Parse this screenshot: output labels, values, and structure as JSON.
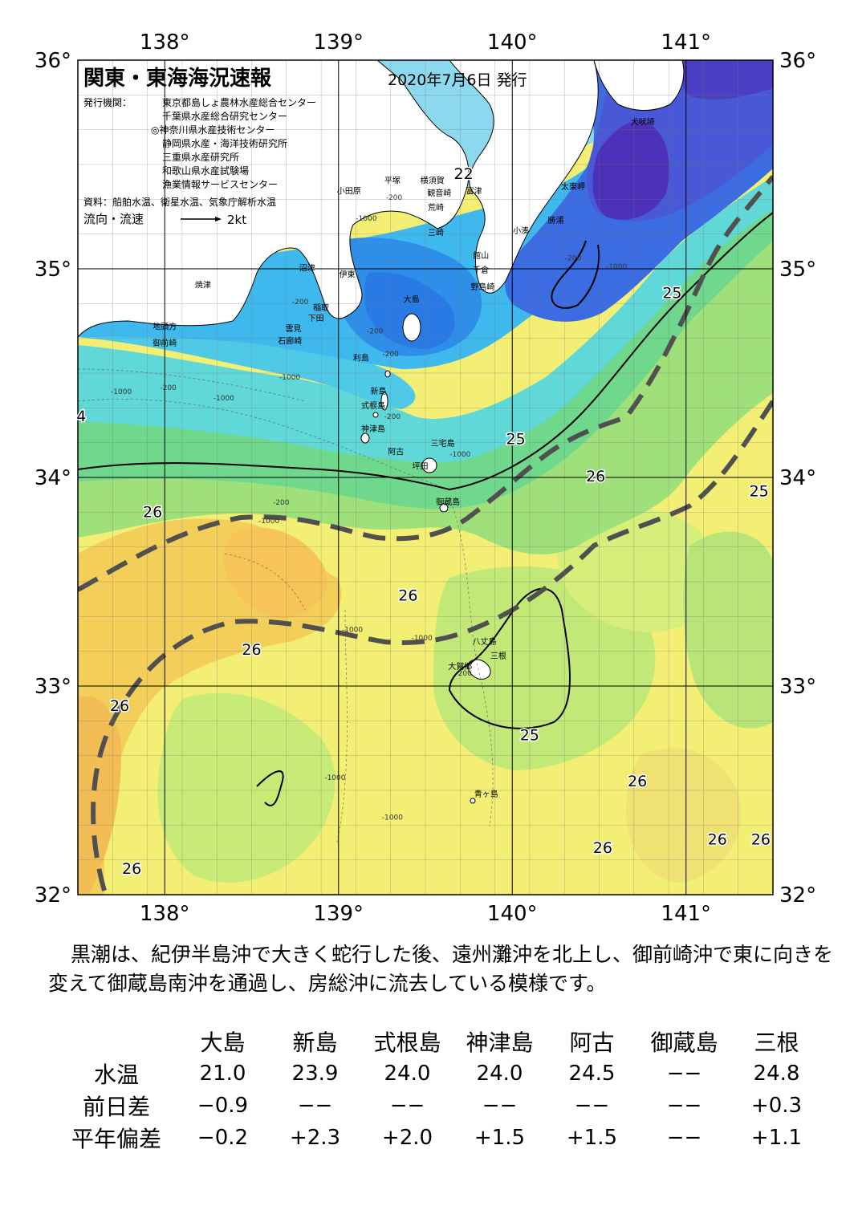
{
  "title": "関東・東海海況速報",
  "issue_date": "2020年7月6日 発行",
  "issuer_label": "発行機関：",
  "issuers": [
    "東京都島しょ農林水産総合センター",
    "千葉県水産総合研究センター",
    "◎神奈川県水産技術センター",
    "静岡県水産・海洋技術研究所",
    "三重県水産研究所",
    "和歌山県水産試験場",
    "漁業情報サービスセンター"
  ],
  "sources": "資料：船舶水温、衛星水温、気象庁解析水温",
  "flow_legend": {
    "label": "流向・流速",
    "value": "2kt"
  },
  "colors": {
    "land": "#ffffff",
    "kuroshio_axis": "#505050",
    "isotherm": "#000000"
  },
  "axes": {
    "lon_ticks": [
      "138°",
      "139°",
      "140°",
      "141°"
    ],
    "lat_ticks": [
      "36°",
      "35°",
      "34°",
      "33°",
      "32°"
    ],
    "lon_range": [
      137.5,
      141.5
    ],
    "lat_range": [
      32,
      36
    ]
  },
  "place_names": [
    {
      "name": "犬吠埼",
      "lon": 140.75,
      "lat": 35.69
    },
    {
      "name": "太東岬",
      "lon": 140.35,
      "lat": 35.38
    },
    {
      "name": "勝浦",
      "lon": 140.25,
      "lat": 35.22
    },
    {
      "name": "小湊",
      "lon": 140.05,
      "lat": 35.17
    },
    {
      "name": "富津",
      "lon": 139.78,
      "lat": 35.36
    },
    {
      "name": "横須賀",
      "lon": 139.54,
      "lat": 35.41
    },
    {
      "name": "観音崎",
      "lon": 139.58,
      "lat": 35.35
    },
    {
      "name": "平塚",
      "lon": 139.31,
      "lat": 35.41
    },
    {
      "name": "小田原",
      "lon": 139.06,
      "lat": 35.36
    },
    {
      "name": "荒崎",
      "lon": 139.56,
      "lat": 35.28
    },
    {
      "name": "三崎",
      "lon": 139.56,
      "lat": 35.16
    },
    {
      "name": "館山",
      "lon": 139.82,
      "lat": 35.05
    },
    {
      "name": "千倉",
      "lon": 139.82,
      "lat": 34.98
    },
    {
      "name": "野島崎",
      "lon": 139.83,
      "lat": 34.9
    },
    {
      "name": "沼津",
      "lon": 138.82,
      "lat": 34.99
    },
    {
      "name": "伊東",
      "lon": 139.05,
      "lat": 34.96
    },
    {
      "name": "焼津",
      "lon": 138.22,
      "lat": 34.91
    },
    {
      "name": "稲取",
      "lon": 138.9,
      "lat": 34.8
    },
    {
      "name": "下田",
      "lon": 138.87,
      "lat": 34.75
    },
    {
      "name": "雲見",
      "lon": 138.74,
      "lat": 34.7
    },
    {
      "name": "石廊崎",
      "lon": 138.72,
      "lat": 34.64
    },
    {
      "name": "地頭方",
      "lon": 138.0,
      "lat": 34.71
    },
    {
      "name": "御前崎",
      "lon": 138.0,
      "lat": 34.63
    },
    {
      "name": "大島",
      "lon": 139.42,
      "lat": 34.84
    },
    {
      "name": "利島",
      "lon": 139.13,
      "lat": 34.56
    },
    {
      "name": "新島",
      "lon": 139.23,
      "lat": 34.4
    },
    {
      "name": "式根島",
      "lon": 139.2,
      "lat": 34.33
    },
    {
      "name": "神津島",
      "lon": 139.2,
      "lat": 34.22
    },
    {
      "name": "三宅島",
      "lon": 139.6,
      "lat": 34.15
    },
    {
      "name": "阿古",
      "lon": 139.33,
      "lat": 34.11
    },
    {
      "name": "坪田",
      "lon": 139.47,
      "lat": 34.04
    },
    {
      "name": "御蔵島",
      "lon": 139.63,
      "lat": 33.87
    },
    {
      "name": "八丈島",
      "lon": 139.84,
      "lat": 33.2
    },
    {
      "name": "三根",
      "lon": 139.92,
      "lat": 33.13
    },
    {
      "name": "大賀郷",
      "lon": 139.7,
      "lat": 33.08
    },
    {
      "name": "青ヶ島",
      "lon": 139.85,
      "lat": 32.47
    }
  ],
  "isotherm_labels": [
    {
      "text": "22",
      "lon": 139.72,
      "lat": 35.43
    },
    {
      "text": "25",
      "lon": 140.92,
      "lat": 34.86
    },
    {
      "text": "25",
      "lon": 140.02,
      "lat": 34.16
    },
    {
      "text": "26",
      "lon": 140.48,
      "lat": 33.98
    },
    {
      "text": "25",
      "lon": 141.42,
      "lat": 33.91
    },
    {
      "text": "26",
      "lon": 137.93,
      "lat": 33.81
    },
    {
      "text": "26",
      "lon": 139.4,
      "lat": 33.41
    },
    {
      "text": "26",
      "lon": 138.5,
      "lat": 33.15
    },
    {
      "text": "26",
      "lon": 137.74,
      "lat": 32.88
    },
    {
      "text": "25",
      "lon": 140.1,
      "lat": 32.74
    },
    {
      "text": "26",
      "lon": 140.72,
      "lat": 32.52
    },
    {
      "text": "26",
      "lon": 140.52,
      "lat": 32.2
    },
    {
      "text": "26",
      "lon": 141.18,
      "lat": 32.24
    },
    {
      "text": "26",
      "lon": 141.43,
      "lat": 32.24
    },
    {
      "text": "26",
      "lon": 137.81,
      "lat": 32.1
    },
    {
      "text": "4",
      "lon": 137.52,
      "lat": 34.27
    }
  ],
  "depth_labels": [
    {
      "text": "-200",
      "lon": 139.32,
      "lat": 35.33
    },
    {
      "text": "-1000",
      "lon": 139.16,
      "lat": 35.23
    },
    {
      "text": "-200",
      "lon": 140.35,
      "lat": 35.04
    },
    {
      "text": "-1000",
      "lon": 140.6,
      "lat": 35.0
    },
    {
      "text": "-200",
      "lon": 138.78,
      "lat": 34.83
    },
    {
      "text": "-200",
      "lon": 139.21,
      "lat": 34.69
    },
    {
      "text": "-200",
      "lon": 139.3,
      "lat": 34.58
    },
    {
      "text": "-1000",
      "lon": 138.72,
      "lat": 34.47
    },
    {
      "text": "-1000",
      "lon": 137.75,
      "lat": 34.4
    },
    {
      "text": "-200",
      "lon": 138.02,
      "lat": 34.42
    },
    {
      "text": "-1000",
      "lon": 138.34,
      "lat": 34.37
    },
    {
      "text": "-200",
      "lon": 139.31,
      "lat": 34.28
    },
    {
      "text": "-1000",
      "lon": 139.7,
      "lat": 34.1
    },
    {
      "text": "-200",
      "lon": 138.67,
      "lat": 33.87
    },
    {
      "text": "-1000",
      "lon": 138.6,
      "lat": 33.78
    },
    {
      "text": "-1000",
      "lon": 139.08,
      "lat": 33.26
    },
    {
      "text": "-1000",
      "lon": 139.48,
      "lat": 33.22
    },
    {
      "text": "-200",
      "lon": 139.72,
      "lat": 33.05
    },
    {
      "text": "-1000",
      "lon": 138.98,
      "lat": 32.55
    },
    {
      "text": "-1000",
      "lon": 139.31,
      "lat": 32.36
    }
  ],
  "description": "黒潮は、紀伊半島沖で大きく蛇行した後、遠州灘沖を北上し、御前崎沖で東に向きを変えて御蔵島南沖を通過し、房総沖に流去している模様です。",
  "observations": {
    "stations": [
      "大島",
      "新島",
      "式根島",
      "神津島",
      "阿古",
      "御蔵島",
      "三根"
    ],
    "rows": [
      {
        "label": "水温",
        "values": [
          "21.0",
          "23.9",
          "24.0",
          "24.0",
          "24.5",
          "−−",
          "24.8"
        ]
      },
      {
        "label": "前日差",
        "values": [
          "−0.9",
          "−−",
          "−−",
          "−−",
          "−−",
          "−−",
          "+0.3"
        ]
      },
      {
        "label": "平年偏差",
        "values": [
          "−0.2",
          "+2.3",
          "+2.0",
          "+1.5",
          "+1.5",
          "−−",
          "+1.1"
        ]
      }
    ]
  }
}
